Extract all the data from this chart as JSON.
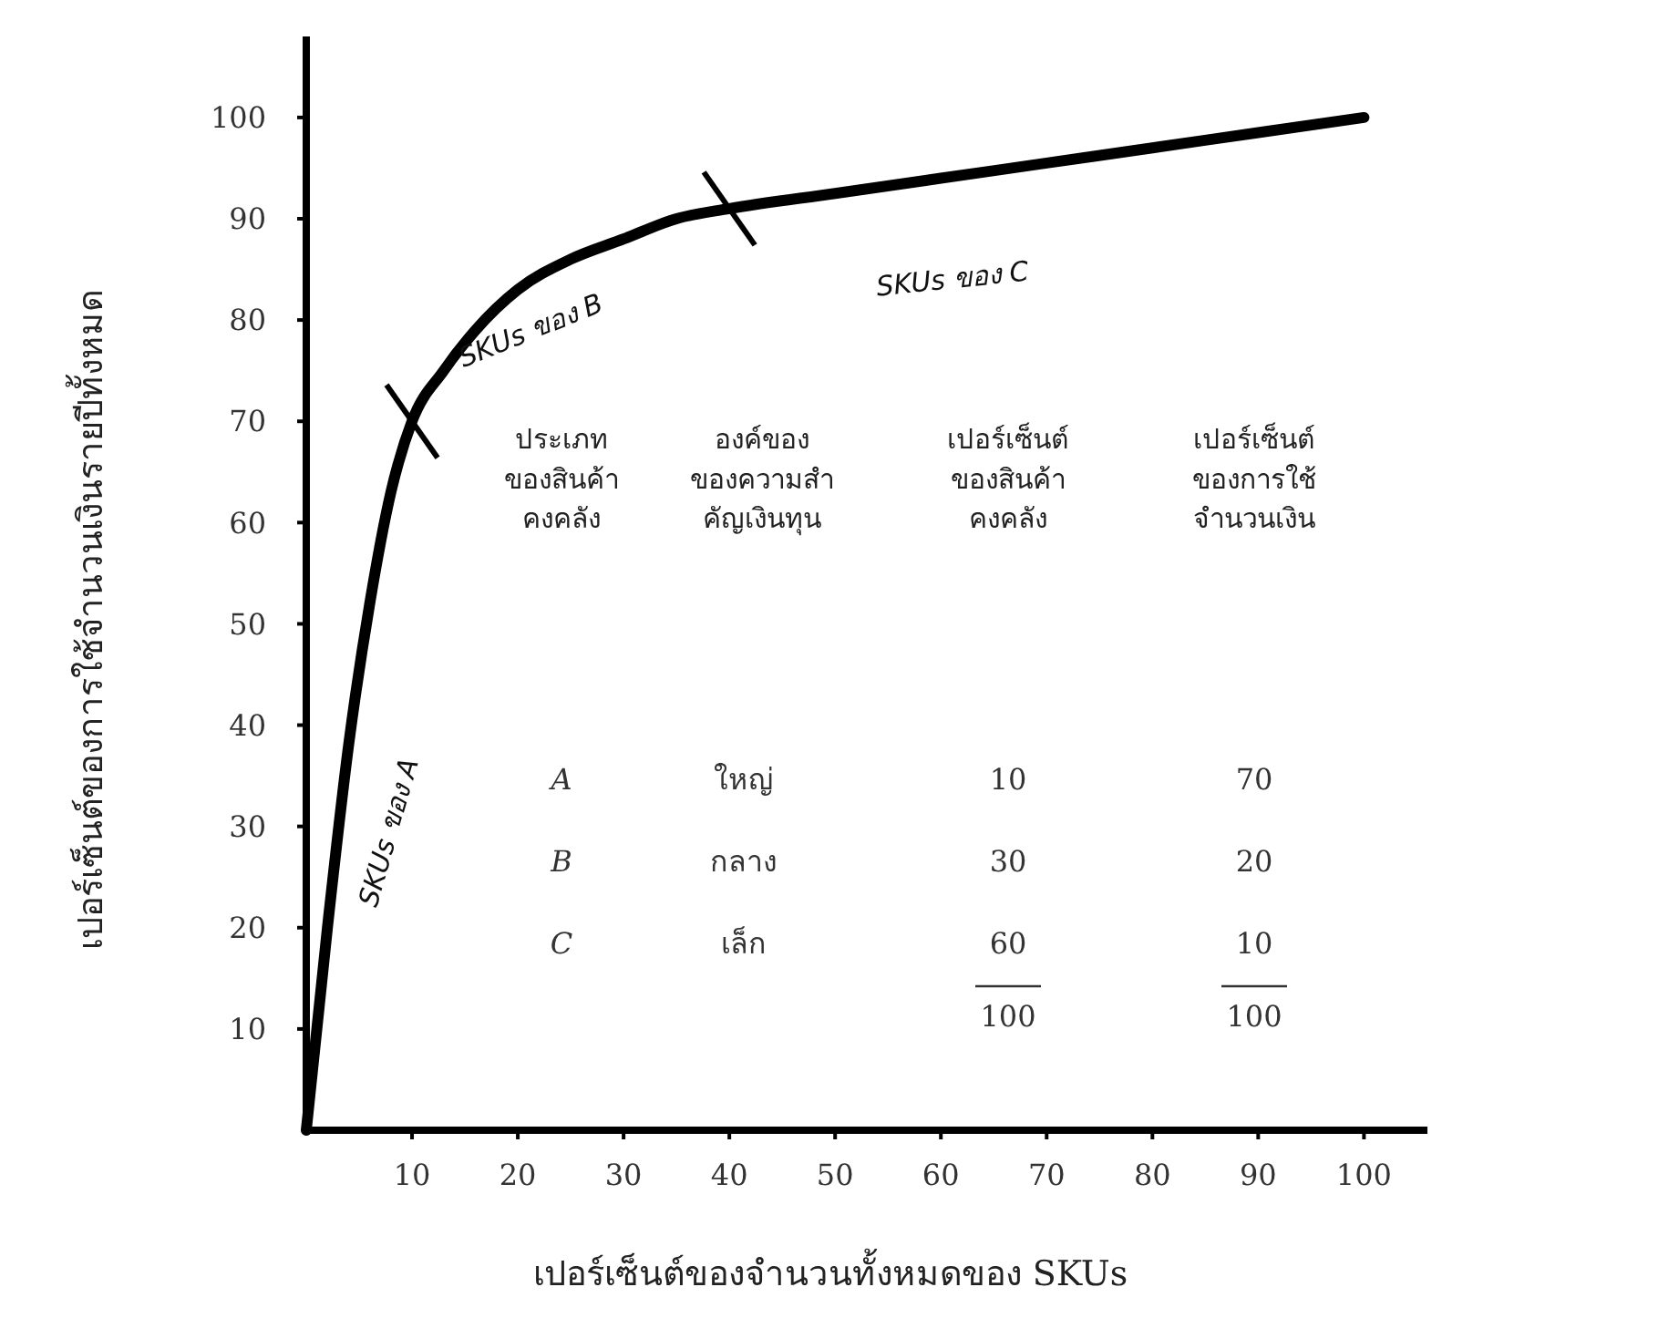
{
  "chart_data": [
    {
      "type": "line",
      "xlabel": "เปอร์เซ็นต์ของจำนวนทั้งหมดของ SKUs",
      "ylabel": "เปอร์เซ็นต์ของการใช้จำนวนเงินรายปีทั้งหมด",
      "xlim": [
        0,
        106
      ],
      "ylim": [
        0,
        108
      ],
      "xticks": [
        10,
        20,
        30,
        40,
        50,
        60,
        70,
        80,
        90,
        100
      ],
      "yticks": [
        10,
        20,
        30,
        40,
        50,
        60,
        70,
        80,
        90,
        100
      ],
      "grid": false,
      "marker": "none",
      "line_style": "solid",
      "series": [
        {
          "color": "#000000",
          "x": [
            0,
            2,
            4,
            6,
            8,
            10,
            13,
            16,
            20,
            25,
            30,
            35,
            40,
            50,
            60,
            70,
            80,
            90,
            100
          ],
          "values": [
            0,
            20,
            38,
            52,
            63,
            70,
            75,
            79,
            83,
            86,
            88,
            90,
            91,
            92.5,
            94,
            95.5,
            97,
            98.5,
            100
          ]
        },
        {
          "type": "scatter",
          "marker": "cross",
          "color": "#000000",
          "x": [
            10,
            40
          ],
          "values": [
            70,
            91
          ]
        }
      ],
      "annotations": [
        "SKUs ของ A",
        "SKUs ของ B",
        "SKUs ของ C"
      ]
    },
    {
      "type": "other",
      "categories": [
        "A",
        "B",
        "C"
      ],
      "xlabel": "ประเภท\nของสินค้า\nคงคลัง",
      "annotations": [
        "องค์ของ\nของความสำ\nคัญเงินทุน",
        "ใหญ่",
        "กลาง",
        "เล็ก"
      ],
      "series": [
        {
          "name": "เปอร์เซ็นต์\nของสินค้า\nคงคลัง",
          "values": [
            10,
            30,
            60
          ]
        },
        {
          "name": "เปอร์เซ็นต์\nของการใช้\nจำนวนเงิน",
          "values": [
            70,
            20,
            10
          ]
        }
      ],
      "data_labels": true,
      "totals": [
        "100",
        "100"
      ]
    }
  ]
}
